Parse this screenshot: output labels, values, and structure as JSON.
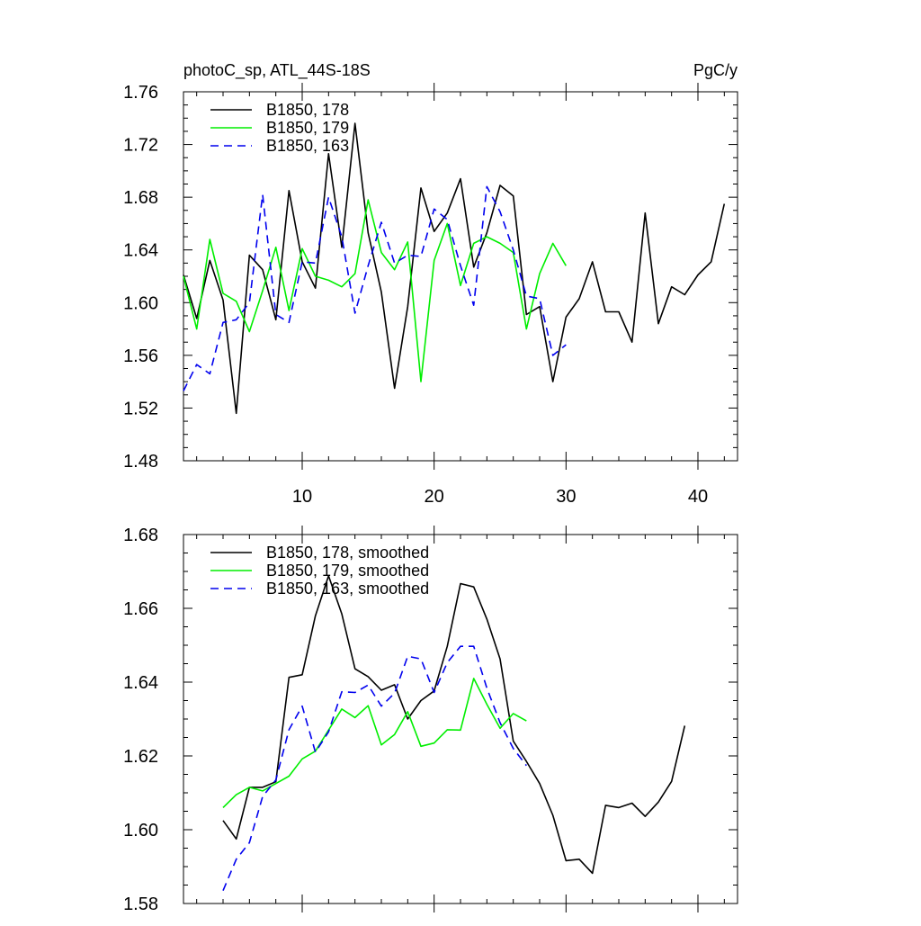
{
  "chart_data": [
    {
      "type": "line",
      "title": "photoC_sp, ATL_44S-18S",
      "units": "PgC/y",
      "xlim": [
        1,
        43
      ],
      "ylim": [
        1.48,
        1.76
      ],
      "y_ticks": [
        "1.48",
        "1.52",
        "1.56",
        "1.60",
        "1.64",
        "1.68",
        "1.72",
        "1.76"
      ],
      "x_ticks": [
        "10",
        "20",
        "30",
        "40"
      ],
      "grid": false,
      "legend_position": "top-left",
      "series": [
        {
          "name": "B1850, 178",
          "color": "#000000",
          "dash": "solid",
          "x": [
            1,
            2,
            3,
            4,
            5,
            6,
            7,
            8,
            9,
            10,
            11,
            12,
            13,
            14,
            15,
            16,
            17,
            18,
            19,
            20,
            21,
            22,
            23,
            24,
            25,
            26,
            27,
            28,
            29,
            30,
            31,
            32,
            33,
            34,
            35,
            36,
            37,
            38,
            39,
            40,
            41,
            42
          ],
          "values": [
            1.621,
            1.588,
            1.632,
            1.602,
            1.516,
            1.636,
            1.625,
            1.587,
            1.685,
            1.631,
            1.611,
            1.713,
            1.642,
            1.736,
            1.653,
            1.608,
            1.535,
            1.597,
            1.687,
            1.654,
            1.668,
            1.694,
            1.627,
            1.653,
            1.689,
            1.681,
            1.591,
            1.597,
            1.54,
            1.589,
            1.603,
            1.631,
            1.593,
            1.593,
            1.57,
            1.668,
            1.584,
            1.612,
            1.606,
            1.621,
            1.631,
            1.675
          ]
        },
        {
          "name": "B1850, 179",
          "color": "#00ee00",
          "dash": "solid",
          "x": [
            1,
            2,
            3,
            4,
            5,
            6,
            7,
            8,
            9,
            10,
            11,
            12,
            13,
            14,
            15,
            16,
            17,
            18,
            19,
            20,
            21,
            22,
            23,
            24,
            25,
            26,
            27,
            28,
            29,
            30
          ],
          "values": [
            1.62,
            1.58,
            1.648,
            1.607,
            1.601,
            1.578,
            1.609,
            1.642,
            1.594,
            1.641,
            1.62,
            1.617,
            1.612,
            1.622,
            1.678,
            1.638,
            1.625,
            1.646,
            1.54,
            1.632,
            1.66,
            1.613,
            1.645,
            1.65,
            1.645,
            1.638,
            1.58,
            1.622,
            1.645,
            1.628
          ]
        },
        {
          "name": "B1850, 163",
          "color": "#0000ee",
          "dash": "dashed",
          "x": [
            1,
            2,
            3,
            4,
            5,
            6,
            7,
            8,
            9,
            10,
            11,
            12,
            13,
            14,
            15,
            16,
            17,
            18,
            19,
            20,
            21,
            22,
            23,
            24,
            25,
            26,
            27,
            28,
            29,
            30
          ],
          "values": [
            1.533,
            1.553,
            1.546,
            1.585,
            1.587,
            1.6,
            1.682,
            1.591,
            1.585,
            1.631,
            1.63,
            1.68,
            1.65,
            1.592,
            1.628,
            1.661,
            1.63,
            1.636,
            1.635,
            1.671,
            1.663,
            1.628,
            1.598,
            1.688,
            1.669,
            1.64,
            1.605,
            1.603,
            1.56,
            1.568
          ]
        }
      ]
    },
    {
      "type": "line",
      "xlim": [
        1,
        43
      ],
      "ylim": [
        1.58,
        1.68
      ],
      "y_ticks": [
        "1.58",
        "1.60",
        "1.62",
        "1.64",
        "1.66",
        "1.68"
      ],
      "grid": false,
      "legend_position": "top-left",
      "series": [
        {
          "name": "B1850, 178, smoothed",
          "color": "#000000",
          "dash": "solid",
          "x": [
            4,
            5,
            6,
            7,
            8,
            9,
            10,
            11,
            12,
            13,
            14,
            15,
            16,
            17,
            18,
            19,
            20,
            21,
            22,
            23,
            24,
            25,
            26,
            27,
            28,
            29,
            30,
            31,
            32,
            33,
            34,
            35,
            36,
            37,
            38,
            39
          ],
          "values": [
            1.6025,
            1.5975,
            1.6115,
            1.6115,
            1.613,
            1.6413,
            1.642,
            1.658,
            1.6688,
            1.6585,
            1.6436,
            1.6415,
            1.6378,
            1.6393,
            1.63,
            1.635,
            1.6376,
            1.6497,
            1.6667,
            1.6658,
            1.6571,
            1.6463,
            1.624,
            1.6185,
            1.6125,
            1.6039,
            1.5916,
            1.592,
            1.5882,
            1.6066,
            1.606,
            1.6072,
            1.6036,
            1.6075,
            1.6131,
            1.6282
          ]
        },
        {
          "name": "B1850, 179, smoothed",
          "color": "#00ee00",
          "dash": "solid",
          "x": [
            4,
            5,
            6,
            7,
            8,
            9,
            10,
            11,
            12,
            13,
            14,
            15,
            16,
            17,
            18,
            19,
            20,
            21,
            22,
            23,
            24,
            25,
            26,
            27
          ],
          "values": [
            1.606,
            1.6095,
            1.6115,
            1.6105,
            1.6125,
            1.6145,
            1.6192,
            1.6213,
            1.627,
            1.6327,
            1.6304,
            1.6336,
            1.623,
            1.6258,
            1.632,
            1.6226,
            1.6235,
            1.6271,
            1.627,
            1.641,
            1.634,
            1.6275,
            1.6315,
            1.6295
          ]
        },
        {
          "name": "B1850, 163, smoothed",
          "color": "#0000ee",
          "dash": "dashed",
          "x": [
            4,
            5,
            6,
            7,
            8,
            9,
            10,
            11,
            12,
            13,
            14,
            15,
            16,
            17,
            18,
            19,
            20,
            21,
            22,
            23,
            24,
            25,
            26,
            27
          ],
          "values": [
            1.5835,
            1.592,
            1.5965,
            1.609,
            1.6135,
            1.6271,
            1.6335,
            1.621,
            1.6265,
            1.6374,
            1.6372,
            1.6392,
            1.6335,
            1.637,
            1.647,
            1.6463,
            1.6372,
            1.6453,
            1.6497,
            1.6497,
            1.6384,
            1.629,
            1.622,
            1.6174
          ]
        }
      ]
    }
  ]
}
